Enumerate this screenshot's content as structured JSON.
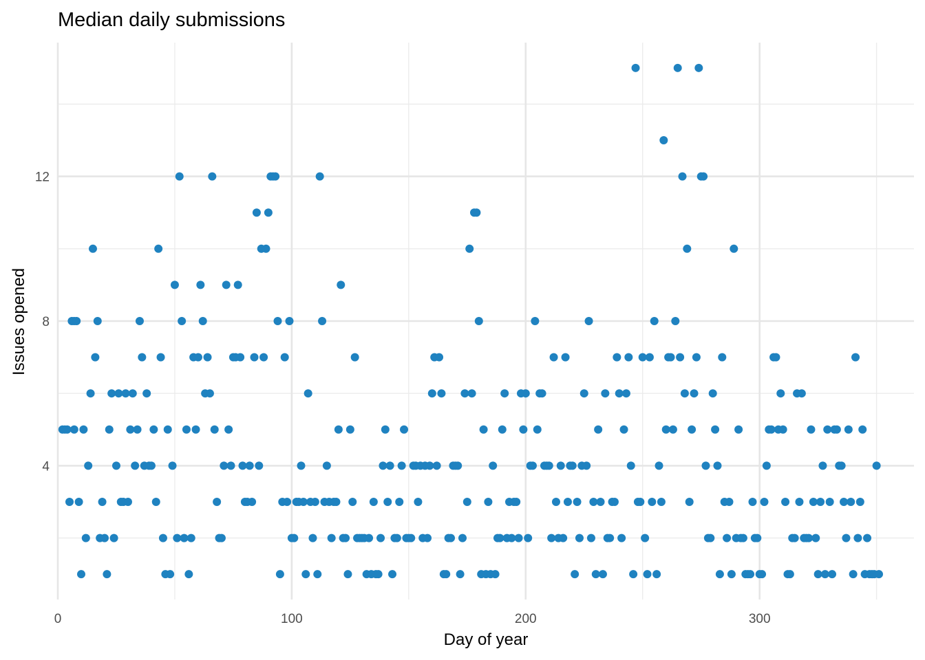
{
  "chart_data": {
    "type": "scatter",
    "title": "Median daily submissions",
    "xlabel": "Day of year",
    "ylabel": "Issues opened",
    "xlim": [
      0,
      366
    ],
    "ylim": [
      0.3,
      15.7
    ],
    "x_ticks": [
      0,
      100,
      200,
      300
    ],
    "x_minor_ticks": [
      50,
      150,
      250,
      350
    ],
    "y_ticks": [
      4,
      8,
      12
    ],
    "y_minor_ticks": [
      2,
      6,
      10,
      14
    ],
    "grid": true,
    "point_color": "#1f82c0",
    "points": [
      [
        2,
        5
      ],
      [
        3,
        5
      ],
      [
        4,
        5
      ],
      [
        5,
        3
      ],
      [
        6,
        8
      ],
      [
        7,
        5
      ],
      [
        7,
        8
      ],
      [
        8,
        8
      ],
      [
        9,
        3
      ],
      [
        10,
        1
      ],
      [
        11,
        5
      ],
      [
        12,
        2
      ],
      [
        13,
        4
      ],
      [
        14,
        6
      ],
      [
        15,
        10
      ],
      [
        16,
        7
      ],
      [
        17,
        8
      ],
      [
        18,
        2
      ],
      [
        19,
        3
      ],
      [
        20,
        2
      ],
      [
        21,
        1
      ],
      [
        22,
        5
      ],
      [
        23,
        6
      ],
      [
        24,
        2
      ],
      [
        25,
        4
      ],
      [
        26,
        6
      ],
      [
        27,
        3
      ],
      [
        28,
        3
      ],
      [
        29,
        6
      ],
      [
        30,
        3
      ],
      [
        31,
        5
      ],
      [
        32,
        6
      ],
      [
        33,
        4
      ],
      [
        34,
        5
      ],
      [
        35,
        8
      ],
      [
        36,
        7
      ],
      [
        37,
        4
      ],
      [
        38,
        6
      ],
      [
        39,
        4
      ],
      [
        40,
        4
      ],
      [
        41,
        5
      ],
      [
        42,
        3
      ],
      [
        43,
        10
      ],
      [
        44,
        7
      ],
      [
        45,
        2
      ],
      [
        46,
        1
      ],
      [
        47,
        5
      ],
      [
        48,
        1
      ],
      [
        49,
        4
      ],
      [
        50,
        9
      ],
      [
        51,
        2
      ],
      [
        52,
        12
      ],
      [
        53,
        8
      ],
      [
        54,
        2
      ],
      [
        55,
        5
      ],
      [
        56,
        1
      ],
      [
        57,
        2
      ],
      [
        58,
        7
      ],
      [
        59,
        5
      ],
      [
        60,
        7
      ],
      [
        61,
        9
      ],
      [
        62,
        8
      ],
      [
        63,
        6
      ],
      [
        64,
        7
      ],
      [
        65,
        6
      ],
      [
        66,
        12
      ],
      [
        67,
        5
      ],
      [
        68,
        3
      ],
      [
        69,
        2
      ],
      [
        70,
        2
      ],
      [
        71,
        4
      ],
      [
        72,
        9
      ],
      [
        73,
        5
      ],
      [
        74,
        4
      ],
      [
        75,
        7
      ],
      [
        76,
        7
      ],
      [
        77,
        9
      ],
      [
        78,
        7
      ],
      [
        79,
        4
      ],
      [
        80,
        3
      ],
      [
        81,
        3
      ],
      [
        82,
        4
      ],
      [
        83,
        3
      ],
      [
        84,
        7
      ],
      [
        85,
        11
      ],
      [
        86,
        4
      ],
      [
        87,
        10
      ],
      [
        88,
        7
      ],
      [
        89,
        10
      ],
      [
        90,
        11
      ],
      [
        91,
        12
      ],
      [
        92,
        12
      ],
      [
        93,
        12
      ],
      [
        94,
        8
      ],
      [
        95,
        1
      ],
      [
        96,
        3
      ],
      [
        97,
        7
      ],
      [
        98,
        3
      ],
      [
        99,
        8
      ],
      [
        100,
        2
      ],
      [
        101,
        2
      ],
      [
        102,
        3
      ],
      [
        103,
        3
      ],
      [
        104,
        4
      ],
      [
        105,
        3
      ],
      [
        106,
        1
      ],
      [
        107,
        6
      ],
      [
        108,
        3
      ],
      [
        109,
        2
      ],
      [
        110,
        3
      ],
      [
        111,
        1
      ],
      [
        112,
        12
      ],
      [
        113,
        8
      ],
      [
        114,
        3
      ],
      [
        115,
        4
      ],
      [
        116,
        3
      ],
      [
        117,
        2
      ],
      [
        118,
        3
      ],
      [
        119,
        3
      ],
      [
        120,
        5
      ],
      [
        121,
        9
      ],
      [
        122,
        2
      ],
      [
        123,
        2
      ],
      [
        124,
        1
      ],
      [
        125,
        5
      ],
      [
        126,
        3
      ],
      [
        127,
        7
      ],
      [
        128,
        2
      ],
      [
        129,
        2
      ],
      [
        130,
        2
      ],
      [
        131,
        2
      ],
      [
        132,
        1
      ],
      [
        133,
        2
      ],
      [
        134,
        1
      ],
      [
        135,
        3
      ],
      [
        136,
        1
      ],
      [
        137,
        1
      ],
      [
        138,
        2
      ],
      [
        139,
        4
      ],
      [
        140,
        5
      ],
      [
        141,
        3
      ],
      [
        142,
        4
      ],
      [
        143,
        1
      ],
      [
        144,
        2
      ],
      [
        145,
        2
      ],
      [
        146,
        3
      ],
      [
        147,
        4
      ],
      [
        148,
        5
      ],
      [
        149,
        2
      ],
      [
        150,
        2
      ],
      [
        151,
        2
      ],
      [
        152,
        4
      ],
      [
        153,
        4
      ],
      [
        154,
        3
      ],
      [
        155,
        4
      ],
      [
        156,
        2
      ],
      [
        157,
        4
      ],
      [
        158,
        2
      ],
      [
        159,
        4
      ],
      [
        160,
        6
      ],
      [
        161,
        7
      ],
      [
        162,
        4
      ],
      [
        163,
        7
      ],
      [
        164,
        6
      ],
      [
        165,
        1
      ],
      [
        166,
        1
      ],
      [
        167,
        2
      ],
      [
        168,
        2
      ],
      [
        169,
        4
      ],
      [
        170,
        4
      ],
      [
        171,
        4
      ],
      [
        172,
        1
      ],
      [
        173,
        2
      ],
      [
        174,
        6
      ],
      [
        175,
        3
      ],
      [
        176,
        10
      ],
      [
        177,
        6
      ],
      [
        178,
        11
      ],
      [
        179,
        11
      ],
      [
        180,
        8
      ],
      [
        181,
        1
      ],
      [
        182,
        5
      ],
      [
        183,
        1
      ],
      [
        184,
        3
      ],
      [
        185,
        1
      ],
      [
        186,
        4
      ],
      [
        187,
        1
      ],
      [
        188,
        2
      ],
      [
        189,
        2
      ],
      [
        190,
        5
      ],
      [
        191,
        6
      ],
      [
        192,
        2
      ],
      [
        193,
        3
      ],
      [
        194,
        2
      ],
      [
        195,
        3
      ],
      [
        196,
        3
      ],
      [
        197,
        2
      ],
      [
        198,
        6
      ],
      [
        199,
        5
      ],
      [
        200,
        6
      ],
      [
        201,
        2
      ],
      [
        202,
        4
      ],
      [
        203,
        4
      ],
      [
        204,
        8
      ],
      [
        205,
        5
      ],
      [
        206,
        6
      ],
      [
        207,
        6
      ],
      [
        208,
        4
      ],
      [
        209,
        4
      ],
      [
        210,
        4
      ],
      [
        211,
        2
      ],
      [
        212,
        7
      ],
      [
        213,
        3
      ],
      [
        214,
        2
      ],
      [
        215,
        4
      ],
      [
        216,
        2
      ],
      [
        217,
        7
      ],
      [
        218,
        3
      ],
      [
        219,
        4
      ],
      [
        220,
        4
      ],
      [
        221,
        1
      ],
      [
        222,
        3
      ],
      [
        223,
        2
      ],
      [
        224,
        4
      ],
      [
        225,
        6
      ],
      [
        226,
        4
      ],
      [
        227,
        8
      ],
      [
        228,
        2
      ],
      [
        229,
        3
      ],
      [
        230,
        1
      ],
      [
        231,
        5
      ],
      [
        232,
        3
      ],
      [
        233,
        1
      ],
      [
        234,
        6
      ],
      [
        235,
        2
      ],
      [
        236,
        2
      ],
      [
        237,
        3
      ],
      [
        238,
        3
      ],
      [
        239,
        7
      ],
      [
        240,
        6
      ],
      [
        241,
        2
      ],
      [
        242,
        5
      ],
      [
        243,
        6
      ],
      [
        244,
        7
      ],
      [
        245,
        4
      ],
      [
        246,
        1
      ],
      [
        247,
        15
      ],
      [
        248,
        3
      ],
      [
        249,
        3
      ],
      [
        250,
        7
      ],
      [
        251,
        2
      ],
      [
        252,
        1
      ],
      [
        253,
        7
      ],
      [
        254,
        3
      ],
      [
        255,
        8
      ],
      [
        256,
        1
      ],
      [
        257,
        4
      ],
      [
        258,
        3
      ],
      [
        259,
        13
      ],
      [
        260,
        5
      ],
      [
        261,
        7
      ],
      [
        262,
        7
      ],
      [
        263,
        5
      ],
      [
        264,
        8
      ],
      [
        265,
        15
      ],
      [
        266,
        7
      ],
      [
        267,
        12
      ],
      [
        268,
        6
      ],
      [
        269,
        10
      ],
      [
        270,
        3
      ],
      [
        271,
        5
      ],
      [
        272,
        6
      ],
      [
        273,
        7
      ],
      [
        274,
        15
      ],
      [
        275,
        12
      ],
      [
        276,
        12
      ],
      [
        277,
        4
      ],
      [
        278,
        2
      ],
      [
        279,
        2
      ],
      [
        280,
        6
      ],
      [
        281,
        5
      ],
      [
        282,
        4
      ],
      [
        283,
        1
      ],
      [
        284,
        7
      ],
      [
        285,
        3
      ],
      [
        286,
        2
      ],
      [
        287,
        3
      ],
      [
        288,
        1
      ],
      [
        289,
        10
      ],
      [
        290,
        2
      ],
      [
        291,
        5
      ],
      [
        292,
        2
      ],
      [
        293,
        2
      ],
      [
        294,
        1
      ],
      [
        295,
        1
      ],
      [
        296,
        1
      ],
      [
        297,
        3
      ],
      [
        298,
        2
      ],
      [
        299,
        2
      ],
      [
        300,
        1
      ],
      [
        301,
        1
      ],
      [
        302,
        3
      ],
      [
        303,
        4
      ],
      [
        304,
        5
      ],
      [
        305,
        5
      ],
      [
        306,
        7
      ],
      [
        307,
        7
      ],
      [
        308,
        5
      ],
      [
        309,
        6
      ],
      [
        310,
        5
      ],
      [
        311,
        3
      ],
      [
        312,
        1
      ],
      [
        313,
        1
      ],
      [
        314,
        2
      ],
      [
        315,
        2
      ],
      [
        316,
        6
      ],
      [
        317,
        3
      ],
      [
        318,
        6
      ],
      [
        319,
        2
      ],
      [
        320,
        2
      ],
      [
        321,
        2
      ],
      [
        322,
        5
      ],
      [
        323,
        3
      ],
      [
        324,
        2
      ],
      [
        325,
        1
      ],
      [
        326,
        3
      ],
      [
        327,
        4
      ],
      [
        328,
        1
      ],
      [
        329,
        5
      ],
      [
        330,
        3
      ],
      [
        331,
        1
      ],
      [
        332,
        5
      ],
      [
        333,
        5
      ],
      [
        334,
        4
      ],
      [
        335,
        4
      ],
      [
        336,
        3
      ],
      [
        337,
        2
      ],
      [
        338,
        5
      ],
      [
        339,
        3
      ],
      [
        340,
        1
      ],
      [
        341,
        7
      ],
      [
        342,
        2
      ],
      [
        343,
        3
      ],
      [
        344,
        5
      ],
      [
        345,
        1
      ],
      [
        346,
        2
      ],
      [
        347,
        1
      ],
      [
        348,
        1
      ],
      [
        349,
        1
      ],
      [
        350,
        4
      ],
      [
        351,
        1
      ]
    ]
  }
}
